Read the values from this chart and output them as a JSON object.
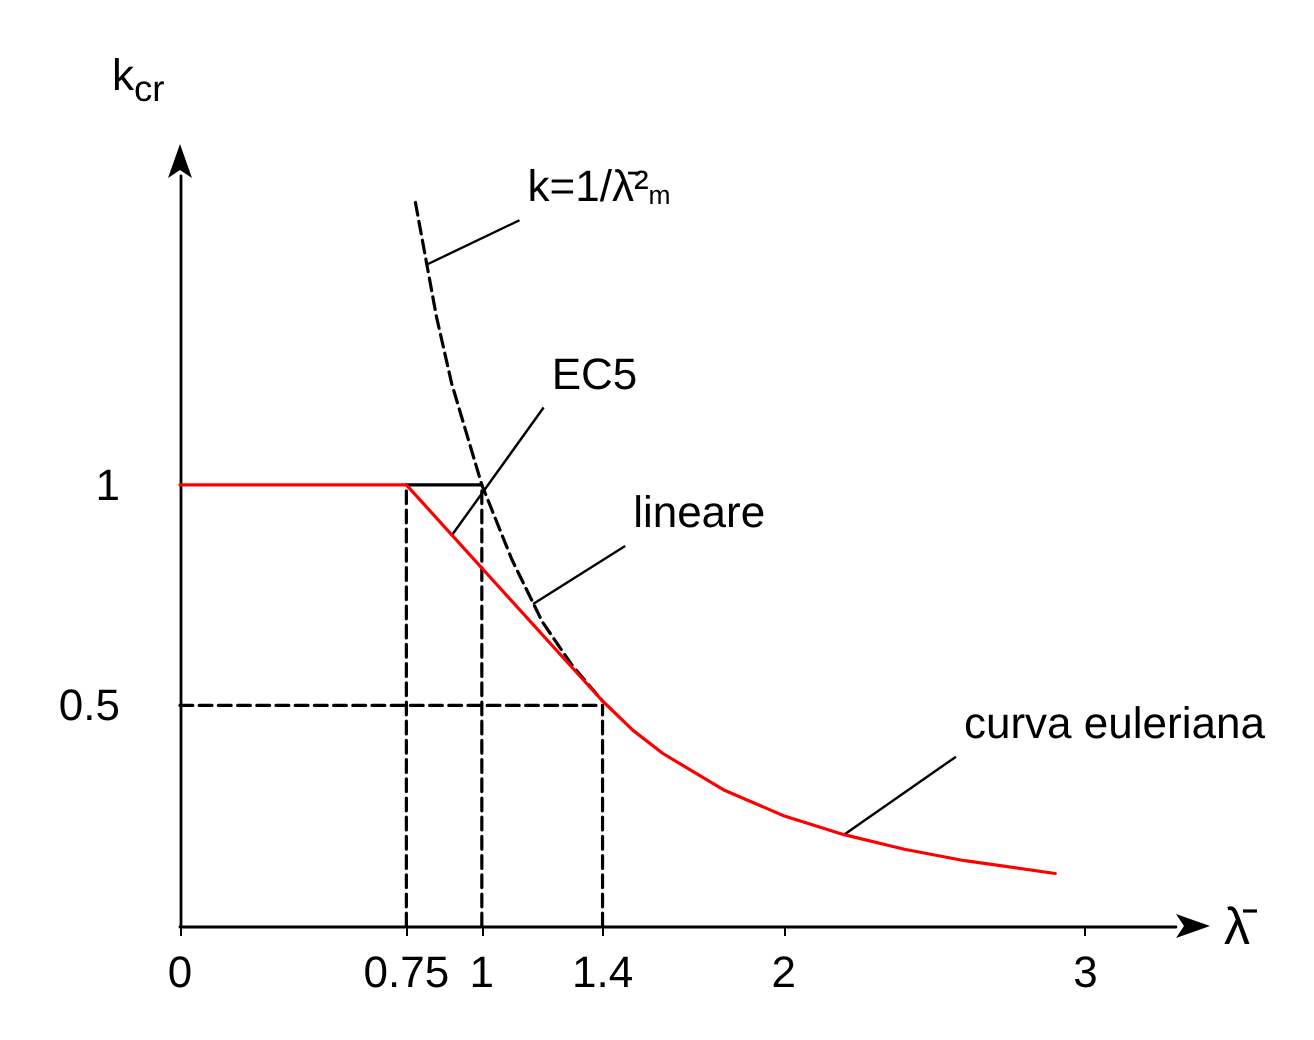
{
  "chart_data": {
    "type": "line",
    "xlabel": "λ̄",
    "ylabel": "k$_{cr}$",
    "xlim": [
      0,
      3.3
    ],
    "ylim": [
      0,
      1.7
    ],
    "xticks": [
      0,
      0.75,
      1,
      1.4,
      2,
      3
    ],
    "yticks": [
      0.5,
      1
    ],
    "grid": false,
    "marker": "none",
    "series": [
      {
        "color": "#000000",
        "line_style": "dashed",
        "x": [
          0.78,
          0.85,
          0.9,
          1,
          1.1,
          1.2,
          1.3,
          1.4
        ],
        "values": [
          1.64,
          1.38,
          1.23,
          1,
          0.83,
          0.69,
          0.59,
          0.51
        ]
      },
      {
        "color": "#000000",
        "line_style": "solid",
        "x": [
          0.75,
          1
        ],
        "values": [
          1,
          1
        ]
      },
      {
        "color": "#000000",
        "line_style": "dashed",
        "x": [
          0.75,
          0.75
        ],
        "values": [
          0,
          1
        ]
      },
      {
        "color": "#000000",
        "line_style": "dashed",
        "x": [
          1,
          1
        ],
        "values": [
          0,
          1
        ]
      },
      {
        "color": "#000000",
        "line_style": "dashed",
        "x": [
          1.4,
          1.4
        ],
        "values": [
          0,
          0.5
        ]
      },
      {
        "color": "#000000",
        "line_style": "dashed",
        "x": [
          0,
          1.4
        ],
        "values": [
          0.5,
          0.5
        ]
      },
      {
        "color": "#ff0000",
        "line_style": "solid",
        "x": [
          0,
          0.75,
          1.4,
          1.5,
          1.6,
          1.8,
          2,
          2.2,
          2.4,
          2.6,
          2.9
        ],
        "values": [
          1,
          1,
          0.51,
          0.444,
          0.391,
          0.309,
          0.25,
          0.207,
          0.174,
          0.148,
          0.119
        ]
      }
    ],
    "annotations": [
      {
        "text": "k=1/λ̄²$_{m}$",
        "x": 0.82,
        "y": 1.5
      },
      {
        "text": "EC5",
        "x": 0.9,
        "y": 0.885
      },
      {
        "text": "lineare",
        "x": 1.17,
        "y": 0.73
      },
      {
        "text": "curva euleriana",
        "x": 2.2,
        "y": 0.207
      }
    ]
  }
}
